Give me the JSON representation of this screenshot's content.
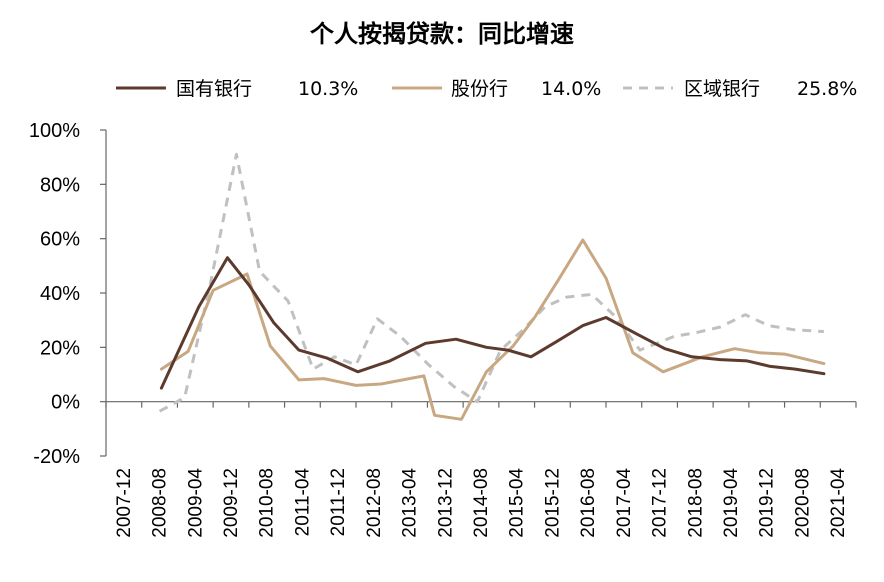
{
  "chart_data": {
    "type": "line",
    "title": "个人按揭贷款：同比增速",
    "xlabel": "",
    "ylabel": "",
    "ylim": [
      -20,
      100
    ],
    "yticks": [
      "100%",
      "80%",
      "60%",
      "40%",
      "20%",
      "0%",
      "-20%"
    ],
    "ytick_values": [
      100,
      80,
      60,
      40,
      20,
      0,
      -20
    ],
    "categories": [
      "2007-12",
      "2008-08",
      "2009-04",
      "2009-12",
      "2010-08",
      "2011-04",
      "2011-12",
      "2012-08",
      "2013-04",
      "2013-12",
      "2014-08",
      "2015-04",
      "2015-12",
      "2016-08",
      "2017-04",
      "2017-12",
      "2018-08",
      "2019-04",
      "2019-12",
      "2020-08",
      "2021-04"
    ],
    "legend_position": "top",
    "grid": false,
    "series": [
      {
        "name": "国有银行",
        "legend_value": "10.3%",
        "color": "#5c3a2e",
        "style": "solid",
        "x": [
          1.55,
          2.6,
          3.4,
          4.0,
          4.7,
          5.4,
          6.2,
          7.05,
          7.95,
          8.95,
          9.8,
          10.65,
          11.25,
          11.9,
          12.6,
          13.35,
          14.0,
          14.85,
          15.65,
          16.4,
          17.2,
          17.95,
          18.6,
          19.3,
          20.1
        ],
        "values": [
          5,
          35,
          53,
          43,
          29,
          19,
          16,
          11,
          15,
          21.5,
          23,
          20,
          19,
          16.5,
          22,
          28,
          31,
          25,
          19.5,
          16.5,
          15.5,
          15,
          13,
          12,
          10.3
        ]
      },
      {
        "name": "股份行",
        "legend_value": "14.0%",
        "color": "#c8a882",
        "style": "solid",
        "x": [
          1.55,
          2.3,
          3.0,
          3.95,
          4.6,
          5.4,
          6.1,
          7.0,
          7.7,
          8.9,
          9.2,
          9.95,
          10.65,
          11.4,
          12.0,
          12.65,
          13.35,
          14.0,
          14.75,
          15.6,
          16.7,
          17.6,
          18.3,
          19.0,
          20.1
        ],
        "values": [
          12,
          18.5,
          41,
          47,
          20.5,
          8,
          8.5,
          6,
          6.5,
          9.5,
          -5,
          -6.5,
          11,
          20.5,
          31,
          44.5,
          59.5,
          45.5,
          18,
          11,
          16.5,
          19.5,
          18,
          17.5,
          14
        ]
      },
      {
        "name": "区域银行",
        "legend_value": "25.8%",
        "color": "#c0c0c0",
        "style": "dashed",
        "x": [
          1.5,
          2.2,
          2.9,
          3.65,
          4.3,
          5.1,
          5.8,
          6.4,
          7.0,
          7.6,
          8.25,
          9.0,
          9.75,
          10.4,
          11.05,
          11.6,
          12.3,
          12.9,
          13.6,
          14.25,
          14.95,
          15.9,
          16.55,
          17.2,
          17.9,
          18.55,
          19.25,
          20.1
        ],
        "values": [
          -3.5,
          1.5,
          42,
          91,
          48,
          37,
          12,
          16.5,
          13.5,
          30.5,
          24,
          14,
          5.5,
          0,
          19,
          25.5,
          35,
          38.5,
          39.5,
          31.5,
          19,
          24,
          25.5,
          27.5,
          32,
          28,
          26.5,
          25.8
        ]
      }
    ]
  }
}
